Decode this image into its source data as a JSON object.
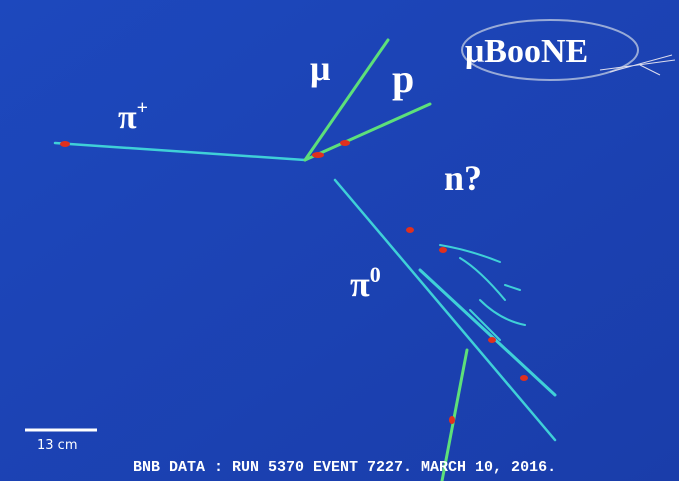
{
  "labels": {
    "pi_plus": {
      "base": "π",
      "sup": "+"
    },
    "mu": "μ",
    "p": "p",
    "n": "n?",
    "pi_zero": {
      "base": "π",
      "sup": "0"
    }
  },
  "logo": "μBooNE",
  "scale_bar": "13 cm",
  "footer": "BNB DATA : RUN 5370 EVENT 7227. MARCH 10, 2016."
}
